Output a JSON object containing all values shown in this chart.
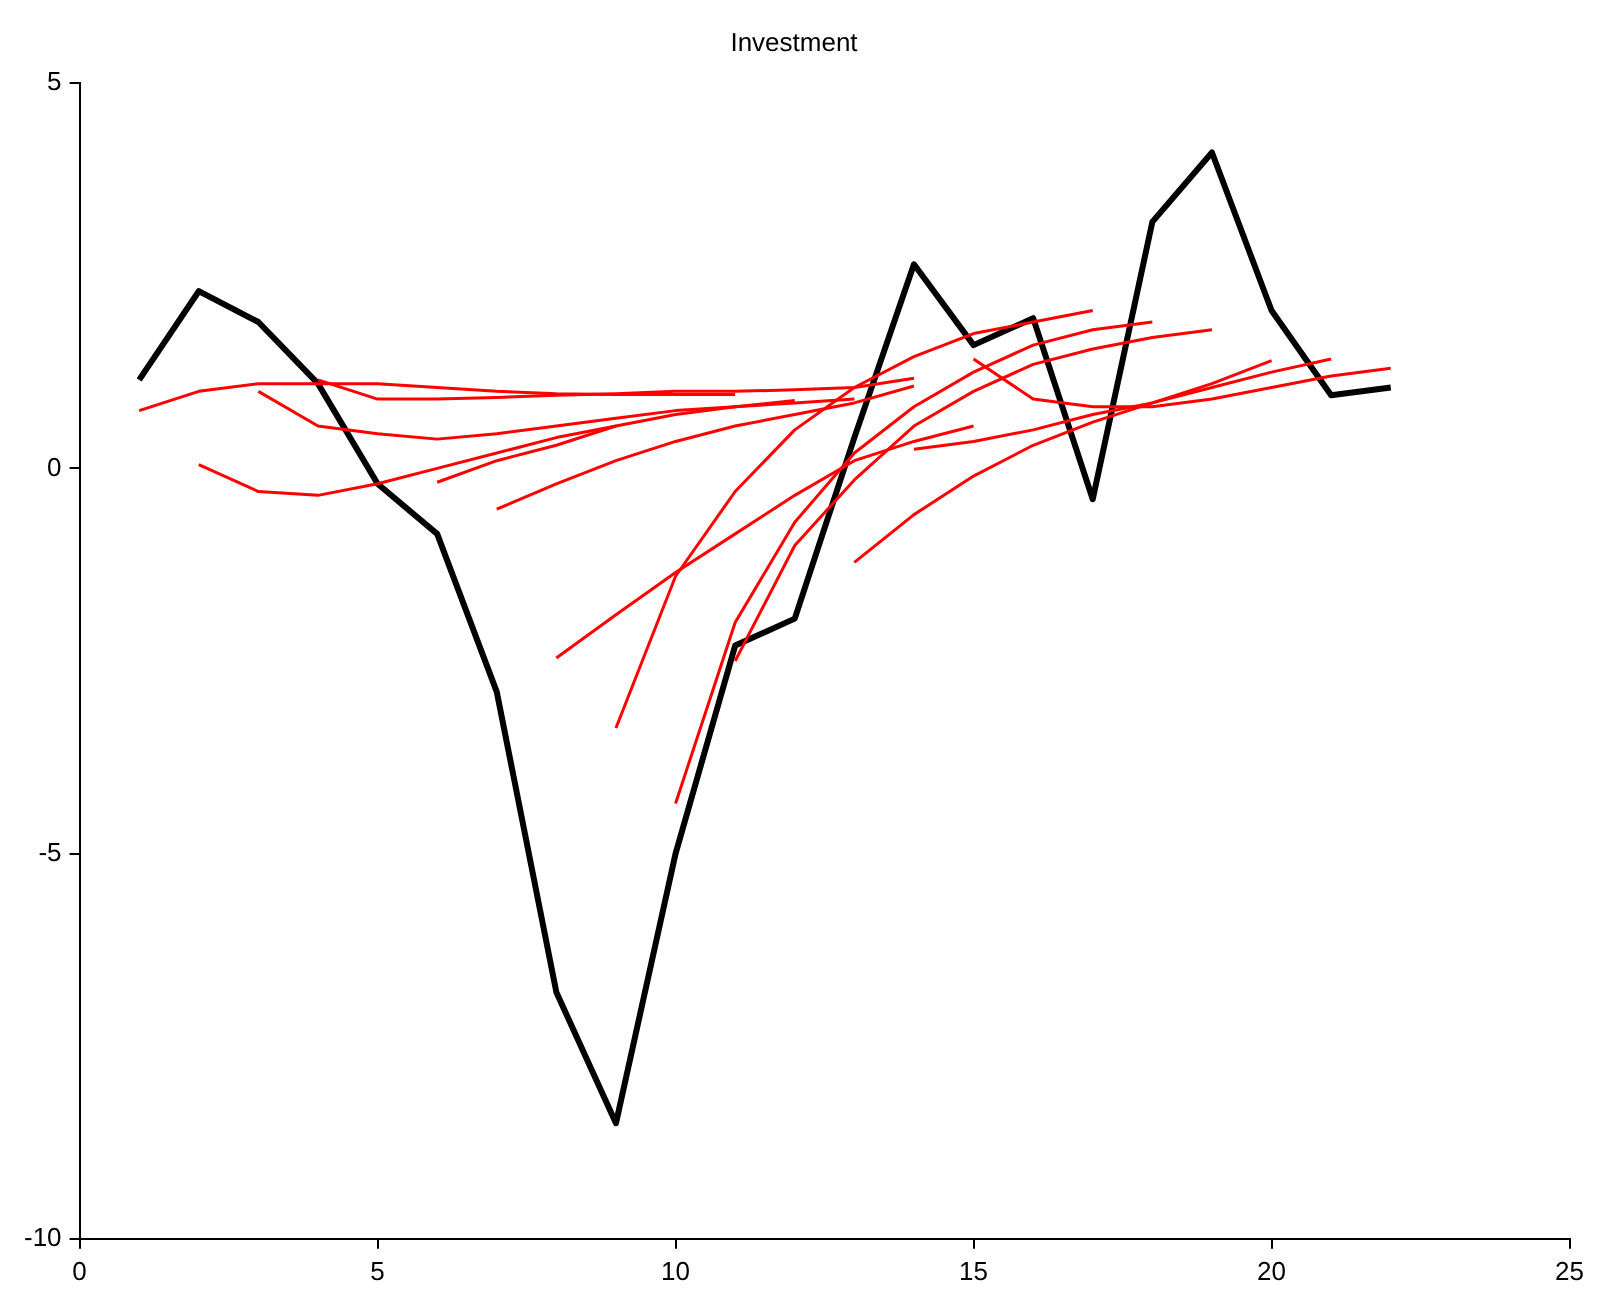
{
  "chart_data": {
    "type": "line",
    "title": "Investment",
    "xlim": [
      0,
      25
    ],
    "xticks": [
      0,
      5,
      10,
      15,
      20,
      25
    ],
    "ylim": [
      -10,
      5
    ],
    "yticks": [
      -10,
      -5,
      0,
      5
    ],
    "grid": false,
    "legend": false,
    "marker": "none",
    "line_style": "solid",
    "series": [
      {
        "color": "#ff0000",
        "x": [
          1,
          2,
          3,
          4,
          5,
          6,
          7,
          8,
          9,
          10,
          11
        ],
        "values": [
          0.75,
          1.0,
          1.1,
          1.1,
          1.1,
          1.05,
          1.0,
          0.97,
          0.96,
          0.96,
          0.96
        ]
      },
      {
        "color": "#ff0000",
        "x": [
          2,
          3,
          4,
          5,
          6,
          7,
          8,
          9,
          10,
          11,
          12
        ],
        "values": [
          0.05,
          -0.3,
          -0.35,
          -0.2,
          0,
          0.2,
          0.4,
          0.55,
          0.7,
          0.8,
          0.88
        ]
      },
      {
        "color": "#ff0000",
        "x": [
          3,
          4,
          5,
          6,
          7,
          8,
          9,
          10,
          11,
          12,
          13
        ],
        "values": [
          1.0,
          0.55,
          0.45,
          0.38,
          0.45,
          0.55,
          0.65,
          0.75,
          0.8,
          0.85,
          0.9
        ]
      },
      {
        "color": "#ff0000",
        "x": [
          4,
          5,
          6,
          7,
          8,
          9,
          10,
          11,
          12,
          13,
          14
        ],
        "values": [
          1.15,
          0.9,
          0.9,
          0.92,
          0.95,
          0.97,
          1.0,
          1.0,
          1.02,
          1.05,
          1.17
        ]
      },
      {
        "color": "#ff0000",
        "x": [
          6,
          7,
          8,
          9
        ],
        "values": [
          -0.18,
          0.1,
          0.3,
          0.55
        ]
      },
      {
        "color": "#ff0000",
        "x": [
          7,
          8,
          9,
          10,
          11,
          12,
          13,
          14
        ],
        "values": [
          -0.53,
          -0.2,
          0.1,
          0.35,
          0.55,
          0.7,
          0.85,
          1.07
        ]
      },
      {
        "color": "#ff0000",
        "x": [
          8,
          9,
          10,
          11,
          12,
          13,
          14,
          15
        ],
        "values": [
          -2.46,
          -1.9,
          -1.35,
          -0.85,
          -0.35,
          0.1,
          0.35,
          0.55
        ]
      },
      {
        "color": "#ff0000",
        "x": [
          9,
          10,
          11,
          12,
          13,
          14,
          15,
          16,
          17
        ],
        "values": [
          -3.37,
          -1.4,
          -0.3,
          0.5,
          1.05,
          1.45,
          1.75,
          1.9,
          2.05
        ]
      },
      {
        "color": "#ff0000",
        "x": [
          10,
          11,
          12,
          13,
          14,
          15,
          16,
          17,
          18
        ],
        "values": [
          -4.35,
          -2.0,
          -0.7,
          0.2,
          0.8,
          1.25,
          1.6,
          1.8,
          1.9
        ]
      },
      {
        "color": "#ff0000",
        "x": [
          11,
          12,
          13,
          14,
          15,
          16,
          17,
          18,
          19
        ],
        "values": [
          -2.5,
          -1.0,
          -0.15,
          0.55,
          1.0,
          1.35,
          1.55,
          1.7,
          1.8
        ]
      },
      {
        "color": "#ff0000",
        "x": [
          13,
          14,
          15,
          16,
          17,
          18,
          19,
          20
        ],
        "values": [
          -1.22,
          -0.6,
          -0.1,
          0.3,
          0.6,
          0.85,
          1.1,
          1.4
        ]
      },
      {
        "color": "#ff0000",
        "x": [
          14,
          15,
          16,
          17,
          18,
          19,
          20,
          21
        ],
        "values": [
          0.25,
          0.35,
          0.5,
          0.7,
          0.85,
          1.05,
          1.25,
          1.42
        ]
      },
      {
        "color": "#ff0000",
        "x": [
          15,
          16,
          17,
          18,
          19,
          20,
          21,
          22
        ],
        "values": [
          1.42,
          0.9,
          0.8,
          0.8,
          0.9,
          1.05,
          1.2,
          1.3
        ]
      },
      {
        "color": "#000000",
        "x": [
          1,
          2,
          3,
          4,
          5,
          6,
          7,
          8,
          9,
          10,
          11,
          12,
          13,
          14,
          15,
          16,
          17,
          18,
          19,
          20,
          21,
          22
        ],
        "values": [
          1.15,
          2.3,
          1.9,
          1.1,
          -0.2,
          -0.85,
          -2.9,
          -6.8,
          -8.5,
          -5.0,
          -2.3,
          -1.95,
          0.4,
          2.65,
          1.6,
          1.95,
          -0.4,
          3.2,
          4.1,
          2.05,
          0.95,
          1.05
        ]
      }
    ]
  }
}
